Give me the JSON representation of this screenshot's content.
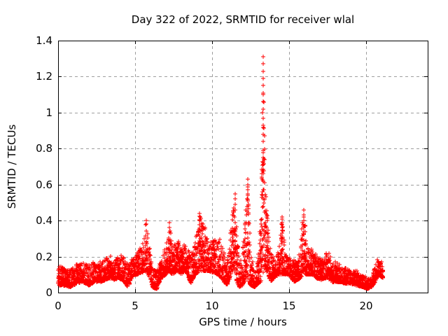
{
  "chart_data": {
    "type": "scatter",
    "title": "Day 322 of 2022, SRMTID for receiver wlal",
    "xlabel": "GPS time / hours",
    "ylabel": "SRMTID / TECUs",
    "xlim": [
      0,
      24
    ],
    "ylim": [
      0,
      1.4
    ],
    "xtick_values": [
      0,
      5,
      10,
      15,
      20
    ],
    "xtick_labels": [
      "0",
      "5",
      "10",
      "15",
      "20"
    ],
    "ytick_values": [
      0,
      0.2,
      0.4,
      0.6,
      0.8,
      1,
      1.2,
      1.4
    ],
    "ytick_labels": [
      "0",
      "0.2",
      "0.4",
      "0.6",
      "0.8",
      "1",
      "1.2",
      "1.4"
    ],
    "grid": true,
    "grid_style": "dashed",
    "legend": "none",
    "marker": "plus",
    "marker_size": 7,
    "colors": {
      "marker": "#ff0000",
      "grid": "#9e9e9e",
      "border": "#000000",
      "text": "#000000",
      "background": "#ffffff"
    },
    "data_time_range": [
      0,
      21.1
    ],
    "sampling": {
      "dt": 0.009,
      "seed": 322
    },
    "envelope": [
      [
        0.0,
        0.04,
        0.15
      ],
      [
        0.4,
        0.04,
        0.14
      ],
      [
        0.8,
        0.03,
        0.13
      ],
      [
        1.2,
        0.05,
        0.16
      ],
      [
        1.6,
        0.06,
        0.17
      ],
      [
        2.0,
        0.04,
        0.15
      ],
      [
        2.4,
        0.06,
        0.18
      ],
      [
        2.8,
        0.06,
        0.17
      ],
      [
        3.1,
        0.07,
        0.19
      ],
      [
        3.35,
        0.08,
        0.21
      ],
      [
        3.6,
        0.07,
        0.18
      ],
      [
        3.9,
        0.08,
        0.2
      ],
      [
        4.2,
        0.07,
        0.21
      ],
      [
        4.55,
        0.03,
        0.15
      ],
      [
        4.8,
        0.09,
        0.2
      ],
      [
        5.1,
        0.1,
        0.22
      ],
      [
        5.45,
        0.11,
        0.26
      ],
      [
        5.72,
        0.12,
        0.4
      ],
      [
        5.95,
        0.08,
        0.26
      ],
      [
        6.15,
        0.03,
        0.14
      ],
      [
        6.4,
        0.02,
        0.12
      ],
      [
        6.7,
        0.08,
        0.19
      ],
      [
        7.0,
        0.1,
        0.25
      ],
      [
        7.22,
        0.12,
        0.39
      ],
      [
        7.45,
        0.1,
        0.26
      ],
      [
        7.7,
        0.12,
        0.31
      ],
      [
        8.0,
        0.1,
        0.25
      ],
      [
        8.3,
        0.12,
        0.28
      ],
      [
        8.6,
        0.05,
        0.2
      ],
      [
        8.9,
        0.1,
        0.28
      ],
      [
        9.2,
        0.12,
        0.44
      ],
      [
        9.5,
        0.12,
        0.38
      ],
      [
        9.8,
        0.12,
        0.28
      ],
      [
        10.1,
        0.11,
        0.3
      ],
      [
        10.4,
        0.1,
        0.33
      ],
      [
        10.7,
        0.07,
        0.25
      ],
      [
        10.95,
        0.04,
        0.17
      ],
      [
        11.15,
        0.08,
        0.3
      ],
      [
        11.45,
        0.12,
        0.55
      ],
      [
        11.62,
        0.05,
        0.32
      ],
      [
        11.8,
        0.03,
        0.16
      ],
      [
        12.05,
        0.05,
        0.28
      ],
      [
        12.3,
        0.08,
        0.63
      ],
      [
        12.5,
        0.04,
        0.25
      ],
      [
        12.75,
        0.03,
        0.13
      ],
      [
        13.0,
        0.05,
        0.2
      ],
      [
        13.2,
        0.06,
        0.45
      ],
      [
        13.32,
        0.1,
        1.31
      ],
      [
        13.45,
        0.14,
        0.7
      ],
      [
        13.6,
        0.1,
        0.4
      ],
      [
        13.85,
        0.06,
        0.22
      ],
      [
        14.1,
        0.09,
        0.2
      ],
      [
        14.35,
        0.1,
        0.24
      ],
      [
        14.55,
        0.1,
        0.42
      ],
      [
        14.75,
        0.1,
        0.22
      ],
      [
        15.0,
        0.1,
        0.2
      ],
      [
        15.3,
        0.06,
        0.18
      ],
      [
        15.6,
        0.07,
        0.17
      ],
      [
        15.95,
        0.1,
        0.46
      ],
      [
        16.2,
        0.1,
        0.27
      ],
      [
        16.5,
        0.1,
        0.24
      ],
      [
        16.8,
        0.08,
        0.21
      ],
      [
        17.1,
        0.07,
        0.18
      ],
      [
        17.5,
        0.08,
        0.23
      ],
      [
        17.8,
        0.06,
        0.18
      ],
      [
        18.2,
        0.06,
        0.16
      ],
      [
        18.6,
        0.05,
        0.14
      ],
      [
        19.0,
        0.05,
        0.13
      ],
      [
        19.4,
        0.04,
        0.12
      ],
      [
        19.8,
        0.03,
        0.1
      ],
      [
        20.1,
        0.02,
        0.08
      ],
      [
        20.35,
        0.03,
        0.09
      ],
      [
        20.6,
        0.06,
        0.15
      ],
      [
        20.8,
        0.1,
        0.21
      ],
      [
        20.95,
        0.09,
        0.19
      ],
      [
        21.1,
        0.08,
        0.16
      ]
    ],
    "spike_columns": [
      [
        13.32,
        1.31
      ],
      [
        13.33,
        1.27
      ],
      [
        13.32,
        1.23
      ],
      [
        13.33,
        1.19
      ],
      [
        13.32,
        1.15
      ],
      [
        13.33,
        1.1
      ],
      [
        13.32,
        1.06
      ],
      [
        13.33,
        1.02
      ],
      [
        13.32,
        0.97
      ],
      [
        13.33,
        0.93
      ],
      [
        13.32,
        0.88
      ],
      [
        13.33,
        0.84
      ],
      [
        13.32,
        0.79
      ],
      [
        13.33,
        0.75
      ],
      [
        13.32,
        0.71
      ],
      [
        13.33,
        0.66
      ],
      [
        13.32,
        0.62
      ],
      [
        13.33,
        0.57
      ],
      [
        13.32,
        0.52
      ],
      [
        13.33,
        0.48
      ],
      [
        12.3,
        0.63
      ],
      [
        12.31,
        0.6
      ],
      [
        12.3,
        0.57
      ],
      [
        12.31,
        0.54
      ],
      [
        12.3,
        0.51
      ],
      [
        12.29,
        0.48
      ],
      [
        11.5,
        0.55
      ],
      [
        11.51,
        0.52
      ],
      [
        11.5,
        0.49
      ],
      [
        11.51,
        0.46
      ],
      [
        14.56,
        0.42
      ],
      [
        14.55,
        0.39
      ],
      [
        14.56,
        0.36
      ],
      [
        14.55,
        0.33
      ],
      [
        14.56,
        0.3
      ],
      [
        15.95,
        0.46
      ],
      [
        15.96,
        0.43
      ],
      [
        15.95,
        0.4
      ],
      [
        15.96,
        0.37
      ],
      [
        15.95,
        0.34
      ],
      [
        9.2,
        0.44
      ],
      [
        9.21,
        0.42
      ],
      [
        9.2,
        0.4
      ],
      [
        5.72,
        0.4
      ],
      [
        5.73,
        0.38
      ],
      [
        7.22,
        0.39
      ],
      [
        7.23,
        0.36
      ]
    ],
    "notable_peaks": [
      {
        "t": 3.3,
        "v": 0.21
      },
      {
        "t": 5.7,
        "v": 0.4
      },
      {
        "t": 7.2,
        "v": 0.39
      },
      {
        "t": 9.2,
        "v": 0.44
      },
      {
        "t": 11.5,
        "v": 0.55
      },
      {
        "t": 12.3,
        "v": 0.63
      },
      {
        "t": 13.3,
        "v": 1.31
      },
      {
        "t": 14.55,
        "v": 0.42
      },
      {
        "t": 16.0,
        "v": 0.46
      }
    ]
  }
}
